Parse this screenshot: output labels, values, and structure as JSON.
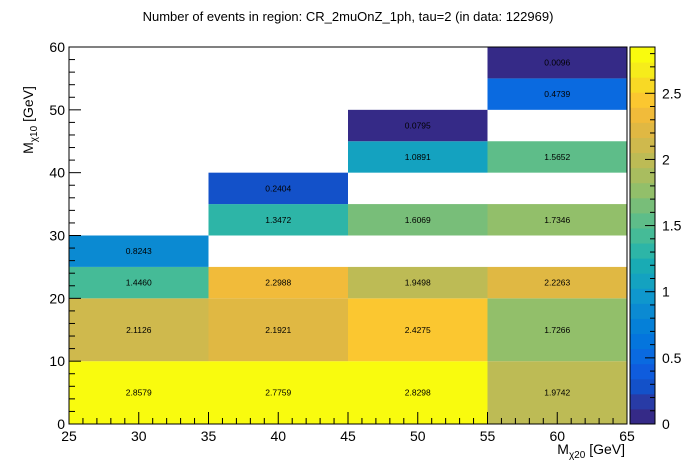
{
  "chart_data": {
    "type": "heatmap",
    "title": "Number of events in region: CR_2muOnZ_1ph, tau=2 (in data: 122969)",
    "xlabel_main": "M",
    "xlabel_sub": "χ20",
    "xlabel_unit": " [GeV]",
    "ylabel_main": "M",
    "ylabel_sub": "χ10",
    "ylabel_unit": " [GeV]",
    "xlim": [
      25,
      65
    ],
    "ylim": [
      0,
      60
    ],
    "zlim": [
      0,
      2.85
    ],
    "x_ticks": [
      "25",
      "30",
      "35",
      "40",
      "45",
      "50",
      "55",
      "60",
      "65"
    ],
    "y_ticks": [
      "0",
      "10",
      "20",
      "30",
      "40",
      "50",
      "60"
    ],
    "z_ticks": [
      "0",
      "0.5",
      "1",
      "1.5",
      "2",
      "2.5"
    ],
    "cells": [
      {
        "x0": 25,
        "x1": 35,
        "y0": 0,
        "y1": 10,
        "value": 2.8579,
        "label": "2.8579"
      },
      {
        "x0": 35,
        "x1": 45,
        "y0": 0,
        "y1": 10,
        "value": 2.7759,
        "label": "2.7759"
      },
      {
        "x0": 45,
        "x1": 55,
        "y0": 0,
        "y1": 10,
        "value": 2.8298,
        "label": "2.8298"
      },
      {
        "x0": 55,
        "x1": 65,
        "y0": 0,
        "y1": 10,
        "value": 1.9742,
        "label": "1.9742"
      },
      {
        "x0": 25,
        "x1": 35,
        "y0": 10,
        "y1": 20,
        "value": 2.1126,
        "label": "2.1126"
      },
      {
        "x0": 35,
        "x1": 45,
        "y0": 10,
        "y1": 20,
        "value": 2.1921,
        "label": "2.1921"
      },
      {
        "x0": 45,
        "x1": 55,
        "y0": 10,
        "y1": 20,
        "value": 2.4275,
        "label": "2.4275"
      },
      {
        "x0": 55,
        "x1": 65,
        "y0": 10,
        "y1": 20,
        "value": 1.7266,
        "label": "1.7266"
      },
      {
        "x0": 25,
        "x1": 35,
        "y0": 20,
        "y1": 25,
        "value": 1.446,
        "label": "1.4460"
      },
      {
        "x0": 35,
        "x1": 45,
        "y0": 20,
        "y1": 25,
        "value": 2.2988,
        "label": "2.2988"
      },
      {
        "x0": 45,
        "x1": 55,
        "y0": 20,
        "y1": 25,
        "value": 1.9498,
        "label": "1.9498"
      },
      {
        "x0": 55,
        "x1": 65,
        "y0": 20,
        "y1": 25,
        "value": 2.2263,
        "label": "2.2263"
      },
      {
        "x0": 25,
        "x1": 35,
        "y0": 25,
        "y1": 30,
        "value": 0.8243,
        "label": "0.8243"
      },
      {
        "x0": 35,
        "x1": 45,
        "y0": 30,
        "y1": 35,
        "value": 1.3472,
        "label": "1.3472"
      },
      {
        "x0": 45,
        "x1": 55,
        "y0": 30,
        "y1": 35,
        "value": 1.6069,
        "label": "1.6069"
      },
      {
        "x0": 55,
        "x1": 65,
        "y0": 30,
        "y1": 35,
        "value": 1.7346,
        "label": "1.7346"
      },
      {
        "x0": 35,
        "x1": 45,
        "y0": 35,
        "y1": 40,
        "value": 0.2404,
        "label": "0.2404"
      },
      {
        "x0": 45,
        "x1": 55,
        "y0": 40,
        "y1": 45,
        "value": 1.0891,
        "label": "1.0891"
      },
      {
        "x0": 55,
        "x1": 65,
        "y0": 40,
        "y1": 45,
        "value": 1.5652,
        "label": "1.5652"
      },
      {
        "x0": 45,
        "x1": 55,
        "y0": 45,
        "y1": 50,
        "value": 0.0795,
        "label": "0.0795"
      },
      {
        "x0": 55,
        "x1": 65,
        "y0": 50,
        "y1": 55,
        "value": 0.4739,
        "label": "0.4739"
      },
      {
        "x0": 55,
        "x1": 65,
        "y0": 55,
        "y1": 60,
        "value": 0.0096,
        "label": "0.0096"
      }
    ],
    "palette": [
      "#352a87",
      "#283ba6",
      "#1351c9",
      "#0f5cdd",
      "#0a6ae0",
      "#0475dd",
      "#0580d8",
      "#0b8ad2",
      "#0f97cd",
      "#14a2c0",
      "#19abb4",
      "#2db5a7",
      "#45bb97",
      "#5ebd89",
      "#78be79",
      "#92bf6a",
      "#a9bd5f",
      "#bdbb55",
      "#cfb94d",
      "#e0b843",
      "#f1bb3a",
      "#fbc730",
      "#f8d925",
      "#f6ec1b",
      "#f9fb0e"
    ]
  }
}
